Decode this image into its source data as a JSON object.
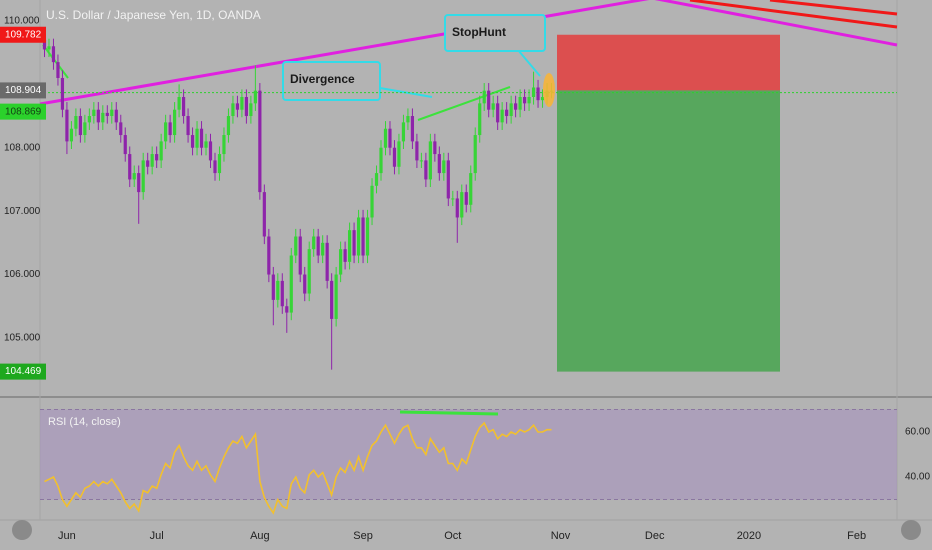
{
  "header": {
    "title": "U.S. Dollar / Japanese Yen, 1D, OANDA"
  },
  "chart_data": [
    {
      "type": "candlestick",
      "x": [
        -5,
        -4,
        -3,
        -2,
        -1,
        0,
        1,
        2,
        3,
        4,
        5,
        6,
        7,
        8,
        9,
        10,
        11,
        12,
        13,
        14,
        15,
        16,
        17,
        18,
        19,
        20,
        21,
        22,
        23,
        24,
        25,
        26,
        27,
        28,
        29,
        30,
        31,
        32,
        33,
        34,
        35,
        36,
        37,
        38,
        39,
        40,
        41,
        42,
        43,
        44,
        45,
        46,
        47,
        48,
        49,
        50,
        51,
        52,
        53,
        54,
        55,
        56,
        57,
        58,
        59,
        60,
        61,
        62,
        63,
        64,
        65,
        66,
        67,
        68,
        69,
        70,
        71,
        72,
        73,
        74,
        75,
        76,
        77,
        78,
        79,
        80,
        81,
        82,
        83,
        84,
        85,
        86,
        87,
        88,
        89,
        90,
        91,
        92,
        93,
        94,
        95,
        96,
        97,
        98,
        99,
        100,
        101,
        102,
        103,
        104,
        105,
        106,
        107,
        108
      ],
      "open": [
        109.7,
        109.55,
        109.6,
        109.35,
        109.1,
        108.6,
        108.1,
        108.3,
        108.5,
        108.2,
        108.4,
        108.5,
        108.6,
        108.4,
        108.55,
        108.5,
        108.6,
        108.4,
        108.2,
        107.9,
        107.5,
        107.6,
        107.3,
        107.8,
        107.7,
        107.9,
        107.8,
        108.1,
        108.4,
        108.2,
        108.6,
        108.8,
        108.5,
        108.2,
        108.0,
        108.3,
        108.0,
        108.1,
        107.8,
        107.6,
        107.9,
        108.2,
        108.5,
        108.7,
        108.6,
        108.8,
        108.5,
        108.7,
        108.9,
        107.3,
        106.6,
        106.0,
        105.6,
        105.9,
        105.5,
        105.4,
        106.3,
        106.6,
        106.0,
        105.7,
        106.4,
        106.6,
        106.3,
        106.5,
        105.9,
        105.3,
        106.0,
        106.4,
        106.2,
        106.7,
        106.3,
        106.9,
        106.3,
        106.9,
        107.4,
        107.6,
        108.0,
        108.3,
        108.0,
        107.7,
        108.1,
        108.4,
        108.5,
        108.1,
        107.8,
        107.8,
        107.5,
        108.1,
        107.9,
        107.6,
        107.8,
        107.2,
        107.2,
        106.9,
        107.3,
        107.1,
        107.6,
        108.2,
        108.7,
        108.9,
        108.6,
        108.7,
        108.4,
        108.6,
        108.5,
        108.7,
        108.6,
        108.8,
        108.7,
        108.8,
        108.95,
        108.75,
        108.8,
        108.9
      ],
      "high": [
        109.82,
        109.72,
        109.72,
        109.47,
        109.22,
        108.72,
        108.42,
        108.62,
        108.62,
        108.52,
        108.62,
        108.72,
        108.72,
        108.67,
        108.67,
        108.72,
        108.72,
        108.52,
        108.32,
        108.02,
        107.72,
        107.72,
        107.92,
        107.92,
        108.02,
        108.02,
        108.22,
        108.52,
        108.52,
        108.72,
        109.0,
        108.92,
        108.62,
        108.32,
        108.42,
        108.42,
        108.22,
        108.22,
        107.92,
        108.02,
        108.32,
        108.62,
        108.82,
        108.82,
        108.92,
        108.92,
        108.82,
        109.3,
        109.02,
        107.42,
        106.72,
        106.12,
        106.02,
        106.02,
        105.62,
        106.42,
        106.72,
        106.72,
        106.12,
        106.52,
        106.72,
        106.72,
        106.62,
        106.62,
        106.02,
        106.12,
        106.52,
        106.52,
        106.82,
        106.82,
        107.02,
        107.02,
        107.02,
        107.52,
        107.72,
        108.12,
        108.42,
        108.42,
        108.12,
        108.22,
        108.52,
        108.62,
        108.62,
        108.22,
        107.92,
        107.92,
        108.22,
        108.22,
        108.02,
        107.92,
        107.92,
        107.32,
        107.32,
        107.42,
        107.42,
        107.72,
        108.32,
        108.82,
        109.02,
        109.02,
        108.82,
        108.82,
        108.72,
        108.72,
        108.82,
        108.82,
        108.92,
        108.92,
        108.92,
        109.2,
        109.07,
        108.92,
        109.02,
        109.02
      ],
      "low": [
        109.43,
        109.43,
        109.23,
        108.98,
        108.48,
        107.9,
        107.98,
        108.18,
        108.08,
        108.08,
        108.28,
        108.38,
        108.28,
        108.28,
        108.38,
        108.38,
        108.28,
        108.08,
        107.78,
        107.38,
        107.38,
        106.8,
        107.18,
        107.58,
        107.58,
        107.68,
        107.68,
        107.98,
        108.08,
        108.08,
        108.48,
        108.38,
        108.08,
        107.88,
        107.88,
        107.88,
        107.88,
        107.68,
        107.48,
        107.48,
        107.78,
        108.08,
        108.38,
        108.48,
        108.48,
        108.38,
        108.38,
        108.58,
        107.18,
        106.48,
        105.88,
        105.2,
        105.48,
        105.38,
        105.08,
        105.28,
        106.18,
        105.88,
        105.58,
        105.58,
        106.28,
        106.18,
        106.18,
        105.78,
        104.5,
        105.18,
        105.88,
        106.08,
        106.08,
        106.18,
        106.18,
        106.18,
        106.18,
        106.78,
        107.28,
        107.48,
        107.88,
        107.88,
        107.58,
        107.58,
        107.98,
        108.28,
        107.98,
        107.68,
        107.68,
        107.38,
        107.38,
        107.78,
        107.48,
        107.48,
        107.08,
        107.08,
        106.5,
        106.78,
        106.98,
        106.98,
        107.48,
        108.08,
        108.58,
        108.48,
        108.48,
        108.28,
        108.28,
        108.38,
        108.38,
        108.48,
        108.48,
        108.58,
        108.58,
        108.68,
        108.63,
        108.63,
        108.68,
        108.78
      ],
      "close": [
        109.55,
        109.6,
        109.35,
        109.1,
        108.6,
        108.1,
        108.3,
        108.5,
        108.2,
        108.4,
        108.5,
        108.6,
        108.4,
        108.55,
        108.5,
        108.6,
        108.4,
        108.2,
        107.9,
        107.5,
        107.6,
        107.3,
        107.8,
        107.7,
        107.9,
        107.8,
        108.1,
        108.4,
        108.2,
        108.6,
        108.8,
        108.5,
        108.2,
        108.0,
        108.3,
        108.0,
        108.1,
        107.8,
        107.6,
        107.9,
        108.2,
        108.5,
        108.7,
        108.6,
        108.8,
        108.5,
        108.7,
        108.9,
        107.3,
        106.6,
        106.0,
        105.6,
        105.9,
        105.5,
        105.4,
        106.3,
        106.6,
        106.0,
        105.7,
        106.4,
        106.6,
        106.3,
        106.5,
        105.9,
        105.3,
        106.0,
        106.4,
        106.2,
        106.7,
        106.3,
        106.9,
        106.3,
        106.9,
        107.4,
        107.6,
        108.0,
        108.3,
        108.0,
        107.7,
        108.1,
        108.4,
        108.5,
        108.1,
        107.8,
        107.8,
        107.5,
        108.1,
        107.9,
        107.6,
        107.8,
        107.2,
        107.2,
        106.9,
        107.3,
        107.1,
        107.6,
        108.2,
        108.7,
        108.9,
        108.6,
        108.7,
        108.4,
        108.6,
        108.5,
        108.7,
        108.6,
        108.8,
        108.7,
        108.8,
        108.95,
        108.75,
        108.8,
        108.9,
        108.9
      ],
      "up_color": "#37d437",
      "down_color": "#8e24aa",
      "xlim": [
        -6,
        185
      ],
      "xticks": [
        {
          "value": 0,
          "label": "Jun"
        },
        {
          "value": 20,
          "label": "Jul"
        },
        {
          "value": 43,
          "label": "Aug"
        },
        {
          "value": 66,
          "label": "Sep"
        },
        {
          "value": 86,
          "label": "Oct"
        },
        {
          "value": 110,
          "label": "Nov"
        },
        {
          "value": 131,
          "label": "Dec"
        },
        {
          "value": 152,
          "label": "2020"
        },
        {
          "value": 176,
          "label": "Feb"
        }
      ],
      "ylim": [
        104.1,
        110.33
      ],
      "yticks": [
        {
          "value": 105,
          "label": "105.000"
        },
        {
          "value": 106,
          "label": "106.000"
        },
        {
          "value": 107,
          "label": "107.000"
        },
        {
          "value": 108,
          "label": "108.000"
        },
        {
          "value": 110,
          "label": "110.000"
        }
      ],
      "price_labels": [
        {
          "value": 109.782,
          "color": "#f01818"
        },
        {
          "value": 108.904,
          "color": "#6a6a6a"
        },
        {
          "value": 108.869,
          "color": "#2bd12b"
        },
        {
          "value": 104.469,
          "color": "#1ea81e"
        }
      ],
      "annotations": [
        "Divergence",
        "StopHunt"
      ]
    },
    {
      "type": "line",
      "title": "RSI (14, close)",
      "x": [
        -5,
        -4,
        -3,
        -2,
        -1,
        0,
        1,
        2,
        3,
        4,
        5,
        6,
        7,
        8,
        9,
        10,
        11,
        12,
        13,
        14,
        15,
        16,
        17,
        18,
        19,
        20,
        21,
        22,
        23,
        24,
        25,
        26,
        27,
        28,
        29,
        30,
        31,
        32,
        33,
        34,
        35,
        36,
        37,
        38,
        39,
        40,
        41,
        42,
        43,
        44,
        45,
        46,
        47,
        48,
        49,
        50,
        51,
        52,
        53,
        54,
        55,
        56,
        57,
        58,
        59,
        60,
        61,
        62,
        63,
        64,
        65,
        66,
        67,
        68,
        69,
        70,
        71,
        72,
        73,
        74,
        75,
        76,
        77,
        78,
        79,
        80,
        81,
        82,
        83,
        84,
        85,
        86,
        87,
        88,
        89,
        90,
        91,
        92,
        93,
        94,
        95,
        96,
        97,
        98,
        99,
        100,
        101,
        102,
        103,
        104,
        105,
        106,
        107,
        108
      ],
      "values": [
        38,
        39,
        40,
        36,
        30,
        27,
        30,
        33,
        31,
        35,
        36,
        38,
        36,
        38,
        37,
        39,
        36,
        33,
        29,
        26,
        28,
        25,
        34,
        33,
        36,
        35,
        41,
        46,
        44,
        51,
        54,
        49,
        45,
        43,
        47,
        43,
        45,
        41,
        38,
        44,
        49,
        53,
        56,
        55,
        58,
        53,
        56,
        59,
        38,
        31,
        27,
        24,
        30,
        27,
        26,
        37,
        40,
        35,
        33,
        41,
        43,
        40,
        42,
        37,
        32,
        40,
        44,
        42,
        47,
        43,
        49,
        43,
        49,
        54,
        56,
        60,
        63,
        59,
        55,
        59,
        62,
        63,
        57,
        53,
        53,
        50,
        57,
        54,
        51,
        53,
        46,
        46,
        43,
        48,
        46,
        52,
        58,
        62,
        64,
        60,
        61,
        57,
        59,
        58,
        60,
        59,
        61,
        60,
        61,
        63,
        60,
        60,
        61,
        61
      ],
      "color": "#f2c02e",
      "bands": [
        30,
        70
      ],
      "band_color": "#a58fc0",
      "ylim": [
        21.8,
        75.1
      ],
      "yticks": [
        {
          "value": 40,
          "label": "40.00"
        },
        {
          "value": 60,
          "label": "60.00"
        }
      ]
    }
  ]
}
